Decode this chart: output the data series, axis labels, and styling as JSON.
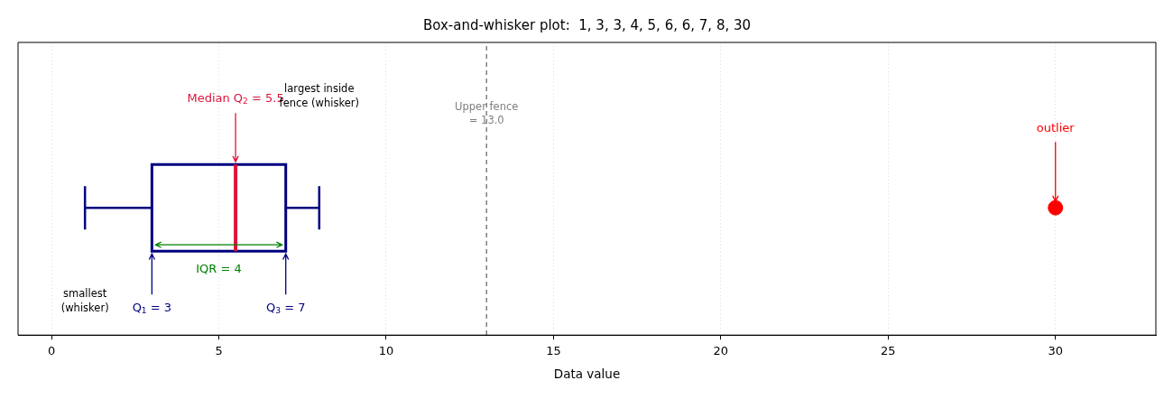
{
  "chart_data": {
    "type": "box",
    "title": "Box-and-whisker plot:  1, 3, 3, 4, 5, 6, 6, 7, 8, 30",
    "xlabel": "Data value",
    "orientation": "horizontal",
    "categories": [
      null
    ],
    "series": [
      {
        "color": "#000080",
        "boxes": [
          {
            "low": 1,
            "q1": 3,
            "median": 5.5,
            "q3": 7,
            "high": 8,
            "outliers": [
              30
            ]
          }
        ]
      }
    ],
    "xlim": [
      -1,
      33
    ],
    "xticks": [
      0,
      5,
      10,
      15,
      20,
      25,
      30
    ],
    "grid": "x",
    "tick_labels": "x",
    "ref_lines": [
      {
        "axis": "x",
        "value": 13,
        "label": "Upper fence\n= 13.0",
        "color": "#808080",
        "line_style": "dashed"
      }
    ],
    "annotations": [
      "Median Q$_{2}$ = 5.5",
      "largest inside\nfence (whisker)",
      "smallest\n(whisker)",
      "Q$_{1}$ = 3",
      "Q$_{3}$ = 7",
      "IQR = 4",
      "outlier"
    ]
  }
}
